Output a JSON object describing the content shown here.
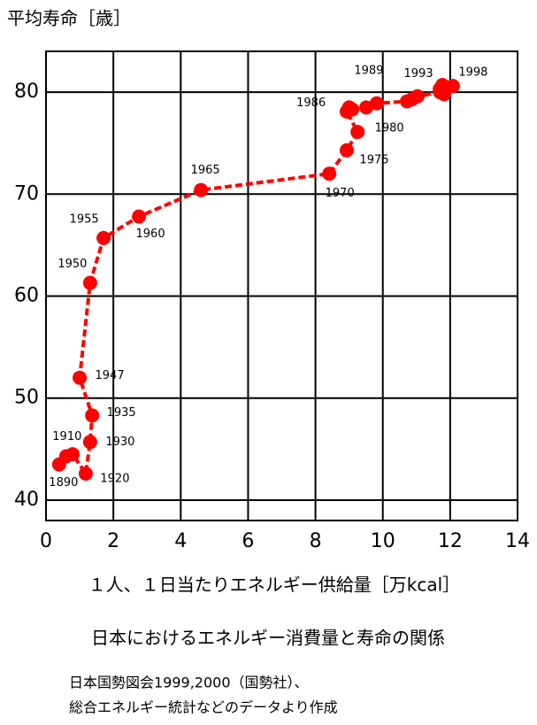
{
  "chart_data": {
    "type": "line",
    "y_label": "平均寿命［歳］",
    "x_label": "１人、１日当たりエネルギー供給量［万kcal］",
    "title": "日本におけるエネルギー消費量と寿命の関係",
    "source": [
      "日本国勢図会1999,2000（国勢社）、",
      "総合エネルギー統計などのデータより作成"
    ],
    "xlim": [
      0,
      14
    ],
    "xticks": [
      0,
      2,
      4,
      6,
      8,
      10,
      12,
      14
    ],
    "ylim": [
      38,
      84
    ],
    "yticks": [
      40,
      50,
      60,
      70,
      80
    ],
    "grid": true,
    "series": [
      {
        "color": "#ff0000",
        "x": [
          0.39,
          0.6,
          0.79,
          1.18,
          1.31,
          1.37,
          1.0,
          1.31,
          1.71,
          2.76,
          4.6,
          8.41,
          8.93,
          9.25,
          8.93,
          9.09,
          9.0,
          9.51,
          9.82,
          10.72,
          10.87,
          11.03,
          11.7,
          11.82,
          11.77,
          11.69,
          12.08
        ],
        "values": [
          43.5,
          44.3,
          44.5,
          42.6,
          45.7,
          48.3,
          52.0,
          61.3,
          65.7,
          67.8,
          70.4,
          72.0,
          74.3,
          76.1,
          78.1,
          78.3,
          78.5,
          78.5,
          78.9,
          79.1,
          79.3,
          79.6,
          80.0,
          79.8,
          80.7,
          80.3,
          80.6
        ],
        "point_labels": [
          "1890",
          "1910",
          null,
          "1920",
          "1930",
          "1935",
          "1947",
          "1950",
          "1955",
          "1960",
          "1965",
          "1970",
          "1975",
          "1980",
          null,
          null,
          "1986",
          null,
          "1989",
          null,
          null,
          null,
          null,
          null,
          null,
          "1993",
          "1998"
        ]
      }
    ]
  }
}
